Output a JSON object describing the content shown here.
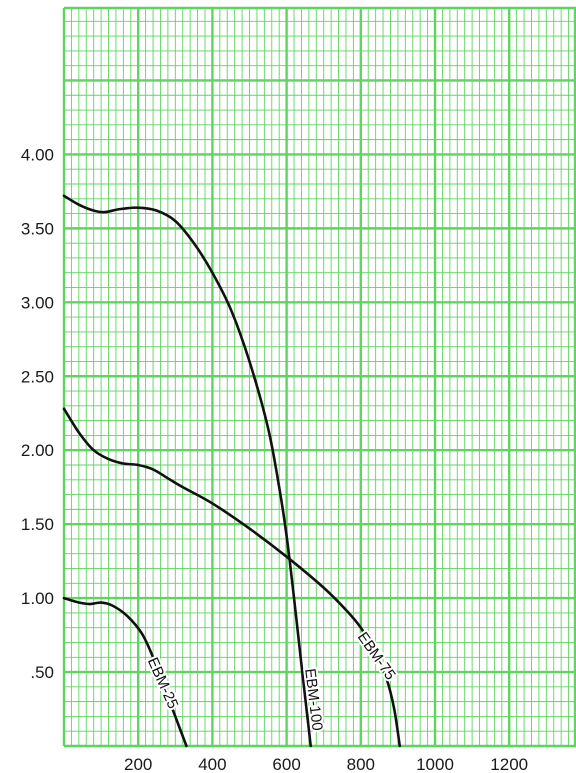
{
  "chart_data": {
    "type": "line",
    "title": "",
    "xlabel": "",
    "ylabel": "",
    "xlim": [
      0,
      1380
    ],
    "ylim": [
      0,
      4.99
    ],
    "grid": true,
    "colors": {
      "grid": "#5fd45f",
      "background": "#ffffff",
      "curve": "#111111"
    },
    "x_ticks": [
      {
        "value": 200,
        "label": "200"
      },
      {
        "value": 400,
        "label": "400"
      },
      {
        "value": 600,
        "label": "600"
      },
      {
        "value": 800,
        "label": "800"
      },
      {
        "value": 1000,
        "label": "1000"
      },
      {
        "value": 1200,
        "label": "1200"
      }
    ],
    "y_ticks": [
      {
        "value": 0.5,
        "label": ".50"
      },
      {
        "value": 1.0,
        "label": "1.00"
      },
      {
        "value": 1.5,
        "label": "1.50"
      },
      {
        "value": 2.0,
        "label": "2.00"
      },
      {
        "value": 2.5,
        "label": "2.50"
      },
      {
        "value": 3.0,
        "label": "3.00"
      },
      {
        "value": 3.5,
        "label": "3.50"
      },
      {
        "value": 4.0,
        "label": "4.00"
      }
    ],
    "series": [
      {
        "name": "EBM-25",
        "x": [
          0,
          40,
          70,
          100,
          130,
          170,
          210,
          240,
          270,
          300,
          330
        ],
        "y": [
          1.0,
          0.97,
          0.96,
          0.97,
          0.95,
          0.88,
          0.76,
          0.6,
          0.4,
          0.2,
          0.0
        ]
      },
      {
        "name": "EBM-75",
        "x": [
          0,
          40,
          80,
          120,
          160,
          200,
          240,
          280,
          320,
          400,
          500,
          600,
          700,
          760,
          800,
          840,
          870,
          890,
          905
        ],
        "y": [
          2.28,
          2.12,
          2.0,
          1.94,
          1.91,
          1.9,
          1.87,
          1.81,
          1.75,
          1.64,
          1.47,
          1.28,
          1.07,
          0.92,
          0.8,
          0.63,
          0.45,
          0.25,
          0.0
        ]
      },
      {
        "name": "EBM-100",
        "x": [
          0,
          40,
          80,
          110,
          150,
          200,
          250,
          300,
          350,
          400,
          450,
          500,
          550,
          580,
          600,
          620,
          640,
          655,
          665
        ],
        "y": [
          3.72,
          3.66,
          3.62,
          3.61,
          3.63,
          3.64,
          3.62,
          3.55,
          3.4,
          3.2,
          2.95,
          2.6,
          2.15,
          1.75,
          1.42,
          1.0,
          0.55,
          0.22,
          0.0
        ]
      }
    ]
  }
}
